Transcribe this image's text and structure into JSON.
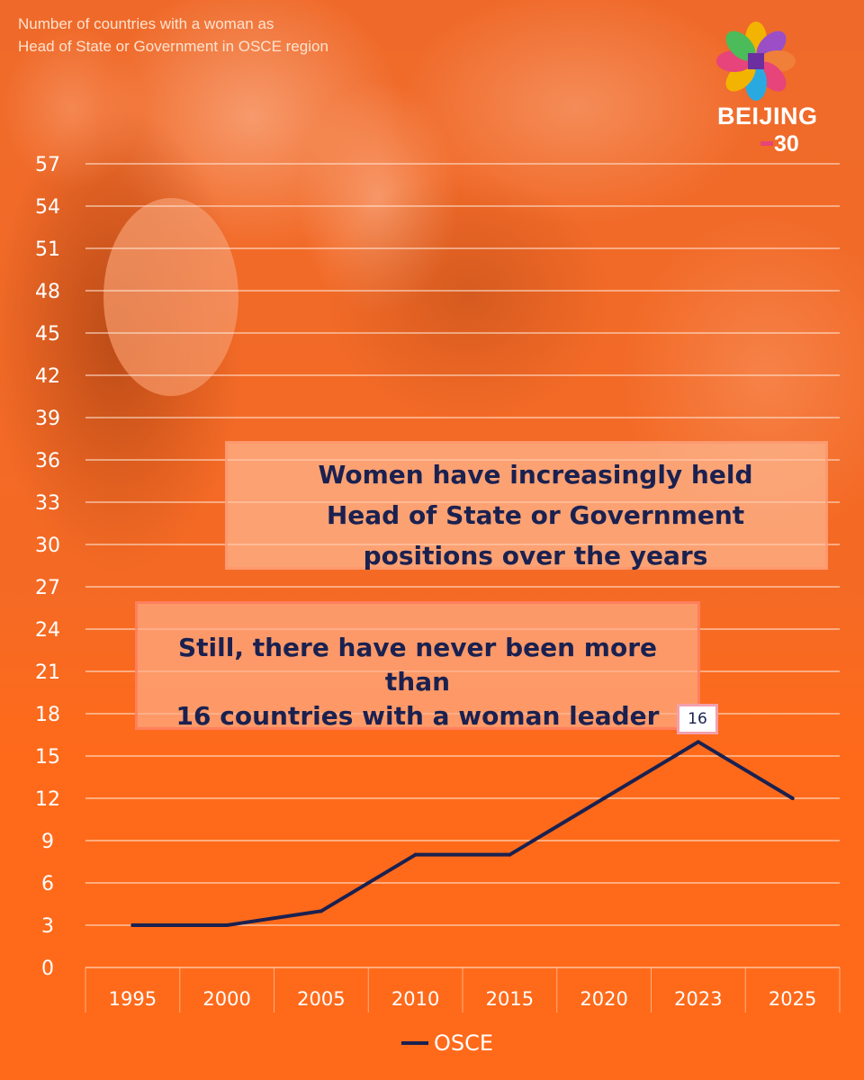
{
  "subtitle_line1": "Number of countries with a woman as",
  "subtitle_line2": "Head of State or Government in OSCE region",
  "logo": {
    "word": "BEIJING",
    "number": "30"
  },
  "callouts": {
    "top": [
      "Women have increasingly held",
      "Head of State or Government",
      "positions over the years"
    ],
    "bottom": [
      "Still, there have never been more than",
      "16 countries with a woman leader"
    ]
  },
  "colors": {
    "background": "#ff6a1a",
    "line": "#1a2150",
    "gridline": "#ffe6d6"
  },
  "chart_data": {
    "type": "line",
    "title": "Number of countries with a woman as Head of State or Government in OSCE region",
    "xlabel": "",
    "ylabel": "",
    "categories": [
      "1995",
      "2000",
      "2005",
      "2010",
      "2015",
      "2020",
      "2023",
      "2025"
    ],
    "series": [
      {
        "name": "OSCE",
        "values": [
          3,
          3,
          4,
          8,
          8,
          12,
          16,
          12
        ]
      }
    ],
    "ylim": [
      0,
      57
    ],
    "yticks": [
      0,
      3,
      6,
      9,
      12,
      15,
      18,
      21,
      24,
      27,
      30,
      33,
      36,
      39,
      42,
      45,
      48,
      51,
      54,
      57
    ],
    "annotations": [
      {
        "category": "2023",
        "label": "16"
      }
    ],
    "grid": true,
    "legend": "bottom-center"
  }
}
